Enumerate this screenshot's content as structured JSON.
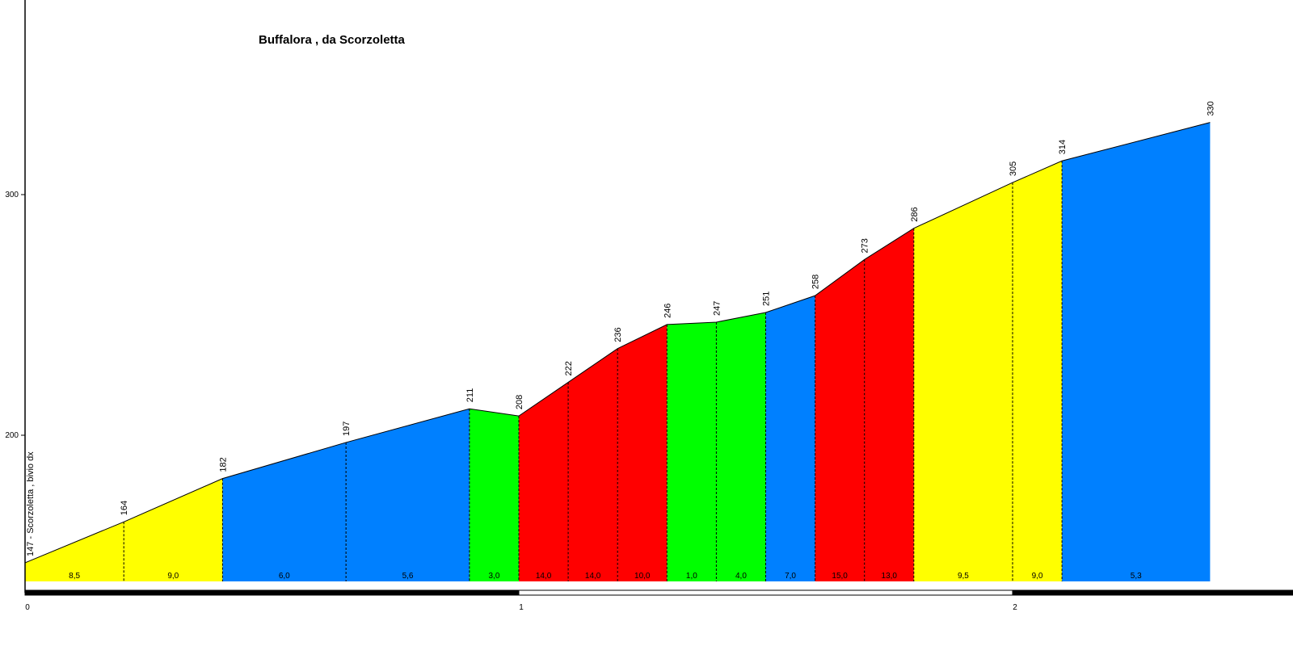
{
  "chart_data": {
    "type": "area",
    "title": "Buffalora , da Scorzoletta",
    "xlabel": "",
    "ylabel": "",
    "xlim": [
      0,
      2.53
    ],
    "ylim": [
      140,
      380
    ],
    "x_ticks": [
      "0",
      "1",
      "2"
    ],
    "y_ticks": [
      "200",
      "300"
    ],
    "start_label": "147 - Scorzoletta , bivio dx",
    "points": [
      {
        "x": 0.0,
        "y": 147
      },
      {
        "x": 0.2,
        "y": 164,
        "label": "164"
      },
      {
        "x": 0.4,
        "y": 182,
        "label": "182"
      },
      {
        "x": 0.65,
        "y": 197,
        "label": "197"
      },
      {
        "x": 0.9,
        "y": 211,
        "label": "211"
      },
      {
        "x": 1.0,
        "y": 208,
        "label": "208"
      },
      {
        "x": 1.1,
        "y": 222,
        "label": "222"
      },
      {
        "x": 1.2,
        "y": 236,
        "label": "236"
      },
      {
        "x": 1.3,
        "y": 246,
        "label": "246"
      },
      {
        "x": 1.4,
        "y": 247,
        "label": "247"
      },
      {
        "x": 1.5,
        "y": 251,
        "label": "251"
      },
      {
        "x": 1.6,
        "y": 258,
        "label": "258"
      },
      {
        "x": 1.7,
        "y": 273,
        "label": "273"
      },
      {
        "x": 1.8,
        "y": 286,
        "label": "286"
      },
      {
        "x": 2.0,
        "y": 305,
        "label": "305"
      },
      {
        "x": 2.1,
        "y": 314,
        "label": "314"
      },
      {
        "x": 2.4,
        "y": 330,
        "label": "330"
      }
    ],
    "segments": [
      {
        "grade": "8,5",
        "color": "#FFFF00"
      },
      {
        "grade": "9,0",
        "color": "#FFFF00"
      },
      {
        "grade": "6,0",
        "color": "#0080FF"
      },
      {
        "grade": "5,6",
        "color": "#0080FF"
      },
      {
        "grade": "3,0",
        "color": "#00FF00"
      },
      {
        "grade": "14,0",
        "color": "#FF0000"
      },
      {
        "grade": "14,0",
        "color": "#FF0000"
      },
      {
        "grade": "10,0",
        "color": "#FF0000"
      },
      {
        "grade": "1,0",
        "color": "#00FF00"
      },
      {
        "grade": "4,0",
        "color": "#00FF00"
      },
      {
        "grade": "7,0",
        "color": "#0080FF"
      },
      {
        "grade": "15,0",
        "color": "#FF0000"
      },
      {
        "grade": "13,0",
        "color": "#FF0000"
      },
      {
        "grade": "9,5",
        "color": "#FFFF00"
      },
      {
        "grade": "9,0",
        "color": "#FFFF00"
      },
      {
        "grade": "5,3",
        "color": "#0080FF"
      }
    ],
    "grid": false,
    "legend": "none"
  }
}
